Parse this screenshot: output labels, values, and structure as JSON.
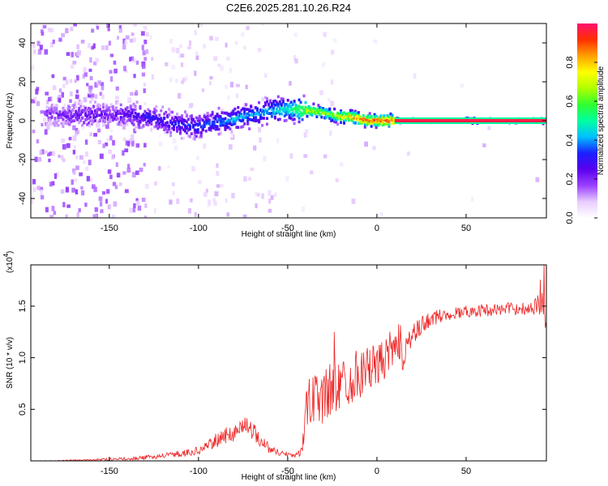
{
  "title": "C2E6.2025.281.10.26.R24",
  "chart_data": [
    {
      "type": "heatmap",
      "xlabel": "Height of straight line (km)",
      "ylabel": "Frequency (Hz)",
      "xlim": [
        -194,
        95
      ],
      "ylim": [
        -50,
        50
      ],
      "xticks": [
        -150,
        -100,
        -50,
        0,
        50
      ],
      "xtick_labels": [
        "-150",
        "-100",
        "-50",
        "0",
        "50"
      ],
      "yticks": [
        -40,
        -20,
        0,
        20,
        40
      ],
      "ytick_labels": [
        "-40",
        "-20",
        "0",
        "20",
        "40"
      ],
      "colorbar": {
        "label": "Normalized spectral amplitude",
        "range": [
          0,
          1
        ],
        "ticks": [
          0.0,
          0.2,
          0.4,
          0.6,
          0.8
        ],
        "tick_labels": [
          "0.0",
          "0.2",
          "0.4",
          "0.6",
          "0.8"
        ],
        "colors": [
          "#ffffff",
          "#e8ccff",
          "#9a40ff",
          "#5a00ee",
          "#1a20ff",
          "#00c0ff",
          "#00ffa0",
          "#30ff30",
          "#b0ff00",
          "#ffff00",
          "#ffa000",
          "#ff3000",
          "#ff1070"
        ]
      },
      "ridge": {
        "x": [
          -175,
          -160,
          -150,
          -140,
          -130,
          -120,
          -110,
          -100,
          -90,
          -80,
          -70,
          -60,
          -50,
          -45,
          -40,
          -35,
          -30,
          -25,
          -20,
          -15,
          -10,
          -5,
          0,
          5,
          10,
          20,
          50,
          95
        ],
        "freq": [
          3,
          3,
          3,
          3,
          2,
          0,
          -2,
          -3,
          -1,
          1,
          3,
          5,
          6,
          6,
          5,
          5,
          4,
          3,
          2,
          2,
          1,
          0,
          0,
          0,
          0,
          0,
          0,
          0
        ],
        "amplitude": [
          0.2,
          0.25,
          0.22,
          0.25,
          0.3,
          0.3,
          0.32,
          0.35,
          0.38,
          0.42,
          0.4,
          0.45,
          0.5,
          0.6,
          0.75,
          0.7,
          0.72,
          0.68,
          0.8,
          0.85,
          0.9,
          0.92,
          0.95,
          0.95,
          0.95,
          0.97,
          0.97,
          0.97
        ]
      }
    },
    {
      "type": "line",
      "xlabel": "Height of straight line (km)",
      "ylabel": "SNR (10 * v/v)",
      "y_multiplier": "(x10",
      "y_multiplier_exp": "4",
      "y_multiplier_close": ")",
      "xlim": [
        -194,
        95
      ],
      "ylim": [
        0,
        1.9
      ],
      "xticks": [
        -150,
        -100,
        -50,
        0,
        50
      ],
      "xtick_labels": [
        "-150",
        "-100",
        "-50",
        "0",
        "50"
      ],
      "yticks": [
        0.5,
        1.0,
        1.5
      ],
      "ytick_labels": [
        "0.5",
        "1.0",
        "1.5"
      ],
      "color": "#ee2222",
      "series": [
        {
          "name": "SNR",
          "x": [
            -194,
            -180,
            -160,
            -140,
            -130,
            -120,
            -110,
            -100,
            -95,
            -90,
            -85,
            -80,
            -75,
            -72,
            -70,
            -65,
            -60,
            -55,
            -50,
            -45,
            -42,
            -40,
            -38,
            -35,
            -30,
            -25,
            -20,
            -15,
            -10,
            -5,
            0,
            5,
            10,
            15,
            20,
            25,
            30,
            40,
            50,
            60,
            70,
            80,
            85,
            90,
            92,
            94,
            95
          ],
          "values": [
            0.0,
            0.0,
            0.01,
            0.02,
            0.03,
            0.05,
            0.07,
            0.1,
            0.14,
            0.2,
            0.24,
            0.28,
            0.33,
            0.36,
            0.3,
            0.2,
            0.12,
            0.08,
            0.06,
            0.06,
            0.1,
            0.45,
            0.55,
            0.6,
            0.62,
            0.7,
            0.75,
            0.8,
            0.85,
            0.9,
            0.92,
            1.0,
            1.05,
            1.1,
            1.2,
            1.3,
            1.38,
            1.42,
            1.45,
            1.46,
            1.47,
            1.48,
            1.48,
            1.5,
            1.6,
            1.7,
            1.4
          ],
          "noise": [
            0.0,
            0.005,
            0.01,
            0.015,
            0.02,
            0.025,
            0.03,
            0.04,
            0.05,
            0.07,
            0.08,
            0.09,
            0.1,
            0.1,
            0.09,
            0.07,
            0.05,
            0.03,
            0.03,
            0.03,
            0.05,
            0.22,
            0.25,
            0.27,
            0.28,
            0.27,
            0.25,
            0.25,
            0.25,
            0.22,
            0.2,
            0.2,
            0.28,
            0.22,
            0.12,
            0.1,
            0.08,
            0.06,
            0.06,
            0.06,
            0.06,
            0.06,
            0.07,
            0.1,
            0.2,
            0.3,
            0.3
          ]
        }
      ]
    }
  ]
}
